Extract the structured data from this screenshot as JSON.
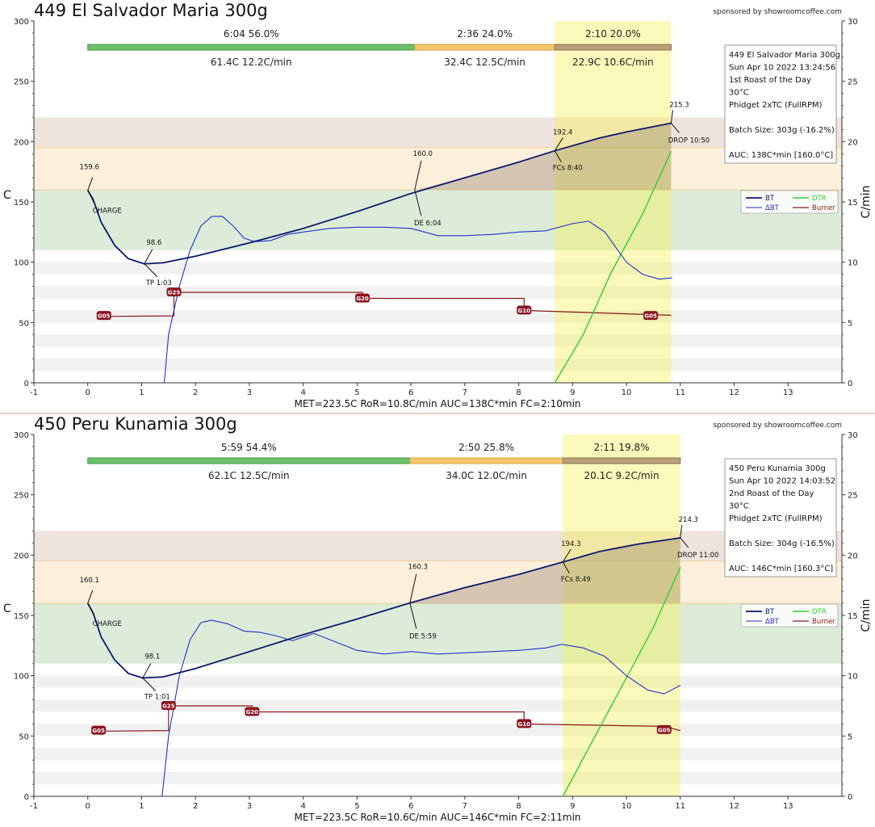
{
  "sponsor": "sponsored by showroomcoffee.com",
  "colors": {
    "bt": "#0a1a6e",
    "dbt": "#2233cc",
    "dtr": "#33cc33",
    "burner": "#8a1a1a",
    "dry": "#6fbf6f",
    "maillard": "#f5c66a",
    "dev": "#b8a07a"
  },
  "legend": {
    "bt": "BT",
    "dbt": "ΔBT",
    "dtr": "DTR",
    "burner": "Burner"
  },
  "units": {
    "left": "C",
    "right": "C/min"
  },
  "chart_data": [
    {
      "type": "line",
      "title": "449 El Salvador Maria 300g",
      "xlim": [
        -1,
        14
      ],
      "ylim": [
        0,
        300
      ],
      "y2lim": [
        0,
        30
      ],
      "x_ticks": [
        "-1",
        "0",
        "1",
        "2",
        "3",
        "4",
        "5",
        "6",
        "7",
        "8",
        "9",
        "10",
        "11",
        "12",
        "13"
      ],
      "y_ticks": [
        "0",
        "50",
        "100",
        "150",
        "200",
        "250",
        "300"
      ],
      "y2_ticks": [
        "0",
        "5",
        "10",
        "15",
        "20",
        "25",
        "30"
      ],
      "phases": {
        "times": [
          "6:04  56.0%",
          "2:36  24.0%",
          "2:10  20.0%"
        ],
        "temps": [
          "61.4C  12.2C/min",
          "32.4C  12.5C/min",
          "22.9C  10.6C/min"
        ],
        "bounds": [
          0,
          6.07,
          8.67,
          10.83
        ]
      },
      "info": [
        "449 El Salvador Maria 300g",
        "Sun Apr 10 2022 13:24:56",
        "1st Roast of the Day",
        "30°C",
        "Phidget 2xTC (FullRPM)",
        "",
        "Batch Size: 303g (-16.2%)",
        "",
        "AUC: 138C*min [160.0°C]"
      ],
      "footer": "MET=223.5C   RoR=10.8C/min   AUC=138C*min   FC=2:10min",
      "events": [
        {
          "x": 0.0,
          "y": 159.6,
          "value": "159.6",
          "label": "CHARGE"
        },
        {
          "x": 1.05,
          "y": 98.6,
          "value": "98.6",
          "label": "TP 1:03"
        },
        {
          "x": 6.07,
          "y": 160.0,
          "value": "160.0",
          "label": "DE 6:04"
        },
        {
          "x": 8.67,
          "y": 192.4,
          "value": "192.4",
          "label": "FCs 8:40"
        },
        {
          "x": 10.83,
          "y": 215.3,
          "value": "215.3",
          "label": "DROP 10:50"
        }
      ],
      "bt": [
        [
          0,
          159.6
        ],
        [
          0.1,
          152
        ],
        [
          0.25,
          133
        ],
        [
          0.5,
          114
        ],
        [
          0.75,
          103
        ],
        [
          1.05,
          98.6
        ],
        [
          1.4,
          99.5
        ],
        [
          2,
          105
        ],
        [
          3,
          116
        ],
        [
          4,
          128
        ],
        [
          5,
          142
        ],
        [
          6,
          157
        ],
        [
          7,
          170
        ],
        [
          8,
          183
        ],
        [
          8.67,
          192.4
        ],
        [
          9.5,
          203
        ],
        [
          10,
          208
        ],
        [
          10.83,
          215.3
        ]
      ],
      "dbt": [
        [
          1.42,
          0
        ],
        [
          1.5,
          4
        ],
        [
          1.7,
          8
        ],
        [
          1.9,
          11
        ],
        [
          2.1,
          13
        ],
        [
          2.3,
          13.8
        ],
        [
          2.5,
          13.8
        ],
        [
          2.7,
          13
        ],
        [
          2.9,
          12
        ],
        [
          3.1,
          11.7
        ],
        [
          3.4,
          11.8
        ],
        [
          3.7,
          12.3
        ],
        [
          4.0,
          12.5
        ],
        [
          4.5,
          12.8
        ],
        [
          5,
          12.9
        ],
        [
          5.5,
          12.9
        ],
        [
          6,
          12.8
        ],
        [
          6.5,
          12.2
        ],
        [
          7,
          12.2
        ],
        [
          7.5,
          12.3
        ],
        [
          8,
          12.5
        ],
        [
          8.5,
          12.6
        ],
        [
          9,
          13.2
        ],
        [
          9.3,
          13.4
        ],
        [
          9.6,
          12.5
        ],
        [
          10,
          10
        ],
        [
          10.3,
          9
        ],
        [
          10.6,
          8.6
        ],
        [
          10.85,
          8.7
        ]
      ],
      "dtr": [
        [
          8.67,
          0
        ],
        [
          9.2,
          4
        ],
        [
          9.7,
          9
        ],
        [
          10.3,
          14
        ],
        [
          10.83,
          19.2
        ]
      ],
      "burner": [
        [
          0.2,
          5.5
        ],
        [
          1.6,
          5.55
        ],
        [
          1.6,
          7.5
        ],
        [
          5.1,
          7.5
        ],
        [
          5.1,
          7.0
        ],
        [
          8.1,
          7.0
        ],
        [
          8.1,
          6.0
        ],
        [
          10.83,
          5.6
        ]
      ],
      "burner_tags": [
        {
          "x": 0.3,
          "y": 5.55,
          "t": "G05"
        },
        {
          "x": 1.6,
          "y": 7.5,
          "t": "G25"
        },
        {
          "x": 5.1,
          "y": 7.0,
          "t": "G20"
        },
        {
          "x": 8.1,
          "y": 6.0,
          "t": "G10"
        },
        {
          "x": 10.45,
          "y": 5.55,
          "t": "G05"
        }
      ]
    },
    {
      "type": "line",
      "title": "450 Peru Kunamia 300g",
      "xlim": [
        -1,
        14
      ],
      "ylim": [
        0,
        300
      ],
      "y2lim": [
        0,
        30
      ],
      "x_ticks": [
        "-1",
        "0",
        "1",
        "2",
        "3",
        "4",
        "5",
        "6",
        "7",
        "8",
        "9",
        "10",
        "11",
        "12",
        "13"
      ],
      "y_ticks": [
        "0",
        "50",
        "100",
        "150",
        "200",
        "250",
        "300"
      ],
      "y2_ticks": [
        "0",
        "5",
        "10",
        "15",
        "20",
        "25",
        "30"
      ],
      "phases": {
        "times": [
          "5:59  54.4%",
          "2:50  25.8%",
          "2:11  19.8%"
        ],
        "temps": [
          "62.1C  12.5C/min",
          "34.0C  12.0C/min",
          "20.1C  9.2C/min"
        ],
        "bounds": [
          0,
          5.98,
          8.82,
          11.0
        ]
      },
      "info": [
        "450 Peru Kunamia 300g",
        "Sun Apr 10 2022 14:03:52",
        "2nd Roast of the Day",
        "30°C",
        "Phidget 2xTC (FullRPM)",
        "",
        "Batch Size: 304g (-16.5%)",
        "",
        "AUC: 146C*min [160.3°C]"
      ],
      "footer": "MET=223.5C   RoR=10.6C/min   AUC=146C*min   FC=2:11min",
      "events": [
        {
          "x": 0.0,
          "y": 160.1,
          "value": "160.1",
          "label": "CHARGE"
        },
        {
          "x": 1.02,
          "y": 98.1,
          "value": "98.1",
          "label": "TP 1:01"
        },
        {
          "x": 5.98,
          "y": 160.3,
          "value": "160.3",
          "label": "DE 5:59"
        },
        {
          "x": 8.82,
          "y": 194.3,
          "value": "194.3",
          "label": "FCs 8:49"
        },
        {
          "x": 11.0,
          "y": 214.3,
          "value": "214.3",
          "label": "DROP 11:00"
        }
      ],
      "bt": [
        [
          0,
          160.1
        ],
        [
          0.1,
          152
        ],
        [
          0.25,
          132
        ],
        [
          0.5,
          113
        ],
        [
          0.75,
          102
        ],
        [
          1.02,
          98.1
        ],
        [
          1.4,
          99
        ],
        [
          2,
          106
        ],
        [
          3,
          120
        ],
        [
          4,
          134
        ],
        [
          5,
          147
        ],
        [
          5.98,
          160.3
        ],
        [
          7,
          173
        ],
        [
          8,
          184
        ],
        [
          8.82,
          194.3
        ],
        [
          9.5,
          203
        ],
        [
          10.2,
          209
        ],
        [
          11,
          214.3
        ]
      ],
      "dbt": [
        [
          1.38,
          0
        ],
        [
          1.5,
          5
        ],
        [
          1.7,
          10
        ],
        [
          1.9,
          13
        ],
        [
          2.1,
          14.4
        ],
        [
          2.3,
          14.6
        ],
        [
          2.6,
          14.3
        ],
        [
          2.9,
          13.7
        ],
        [
          3.2,
          13.6
        ],
        [
          3.5,
          13.3
        ],
        [
          3.8,
          12.9
        ],
        [
          4.2,
          13.5
        ],
        [
          4.6,
          12.8
        ],
        [
          5,
          12.1
        ],
        [
          5.5,
          11.8
        ],
        [
          6,
          12.0
        ],
        [
          6.5,
          11.8
        ],
        [
          7,
          11.9
        ],
        [
          7.5,
          12.0
        ],
        [
          8,
          12.1
        ],
        [
          8.5,
          12.3
        ],
        [
          8.8,
          12.6
        ],
        [
          9.2,
          12.3
        ],
        [
          9.6,
          11.6
        ],
        [
          10,
          10
        ],
        [
          10.4,
          8.8
        ],
        [
          10.7,
          8.5
        ],
        [
          11,
          9.2
        ]
      ],
      "dtr": [
        [
          8.82,
          0
        ],
        [
          9.3,
          4
        ],
        [
          9.9,
          9
        ],
        [
          10.5,
          14
        ],
        [
          11.0,
          19.0
        ]
      ],
      "burner": [
        [
          0.2,
          5.4
        ],
        [
          1.5,
          5.45
        ],
        [
          1.5,
          7.5
        ],
        [
          3.05,
          7.5
        ],
        [
          3.05,
          7.0
        ],
        [
          8.1,
          7.0
        ],
        [
          8.1,
          6.0
        ],
        [
          10.7,
          5.8
        ],
        [
          11.0,
          5.45
        ]
      ],
      "burner_tags": [
        {
          "x": 0.2,
          "y": 5.45,
          "t": "G05"
        },
        {
          "x": 1.5,
          "y": 7.5,
          "t": "G25"
        },
        {
          "x": 3.05,
          "y": 7.0,
          "t": "G20"
        },
        {
          "x": 8.1,
          "y": 6.0,
          "t": "G10"
        },
        {
          "x": 10.7,
          "y": 5.5,
          "t": "G05"
        }
      ]
    }
  ]
}
